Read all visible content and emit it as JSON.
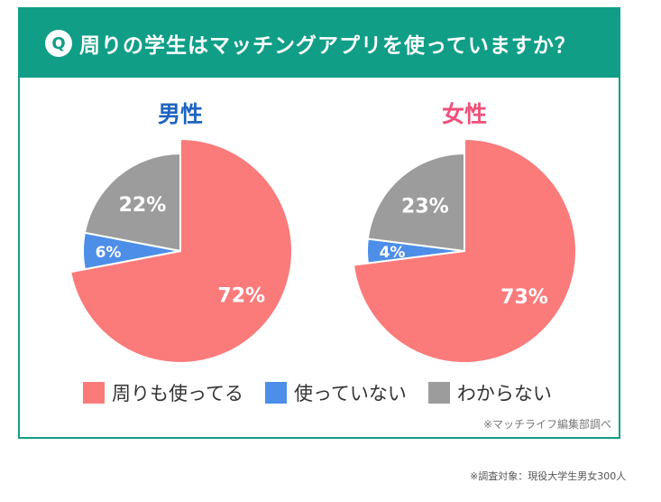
{
  "header": {
    "icon": "Q",
    "title": "周りの学生はマッチングアプリを使っていますか？"
  },
  "colors": {
    "accent": "#109e87",
    "male": "#1f64c0",
    "female": "#f0507a"
  },
  "chart_data": [
    {
      "type": "pie",
      "title": "男性",
      "title_color": "#1f64c0",
      "categories": [
        "周りも使ってる",
        "使っていない",
        "わからない"
      ],
      "values": [
        72,
        6,
        22
      ],
      "labels": [
        "72%",
        "6%",
        "22%"
      ],
      "colors": [
        "#fb7b7b",
        "#4d8ee8",
        "#9c9c9c"
      ]
    },
    {
      "type": "pie",
      "title": "女性",
      "title_color": "#f0507a",
      "categories": [
        "周りも使ってる",
        "使っていない",
        "わからない"
      ],
      "values": [
        73,
        4,
        23
      ],
      "labels": [
        "73%",
        "4%",
        "23%"
      ],
      "colors": [
        "#fb7b7b",
        "#4d8ee8",
        "#9c9c9c"
      ]
    }
  ],
  "legend": [
    {
      "label": "周りも使ってる",
      "color": "#fb7b7b"
    },
    {
      "label": "使っていない",
      "color": "#4d8ee8"
    },
    {
      "label": "わからない",
      "color": "#9c9c9c"
    }
  ],
  "source": "※マッチライフ編集部調べ",
  "note": "※調査対象：現役大学生男女300人"
}
